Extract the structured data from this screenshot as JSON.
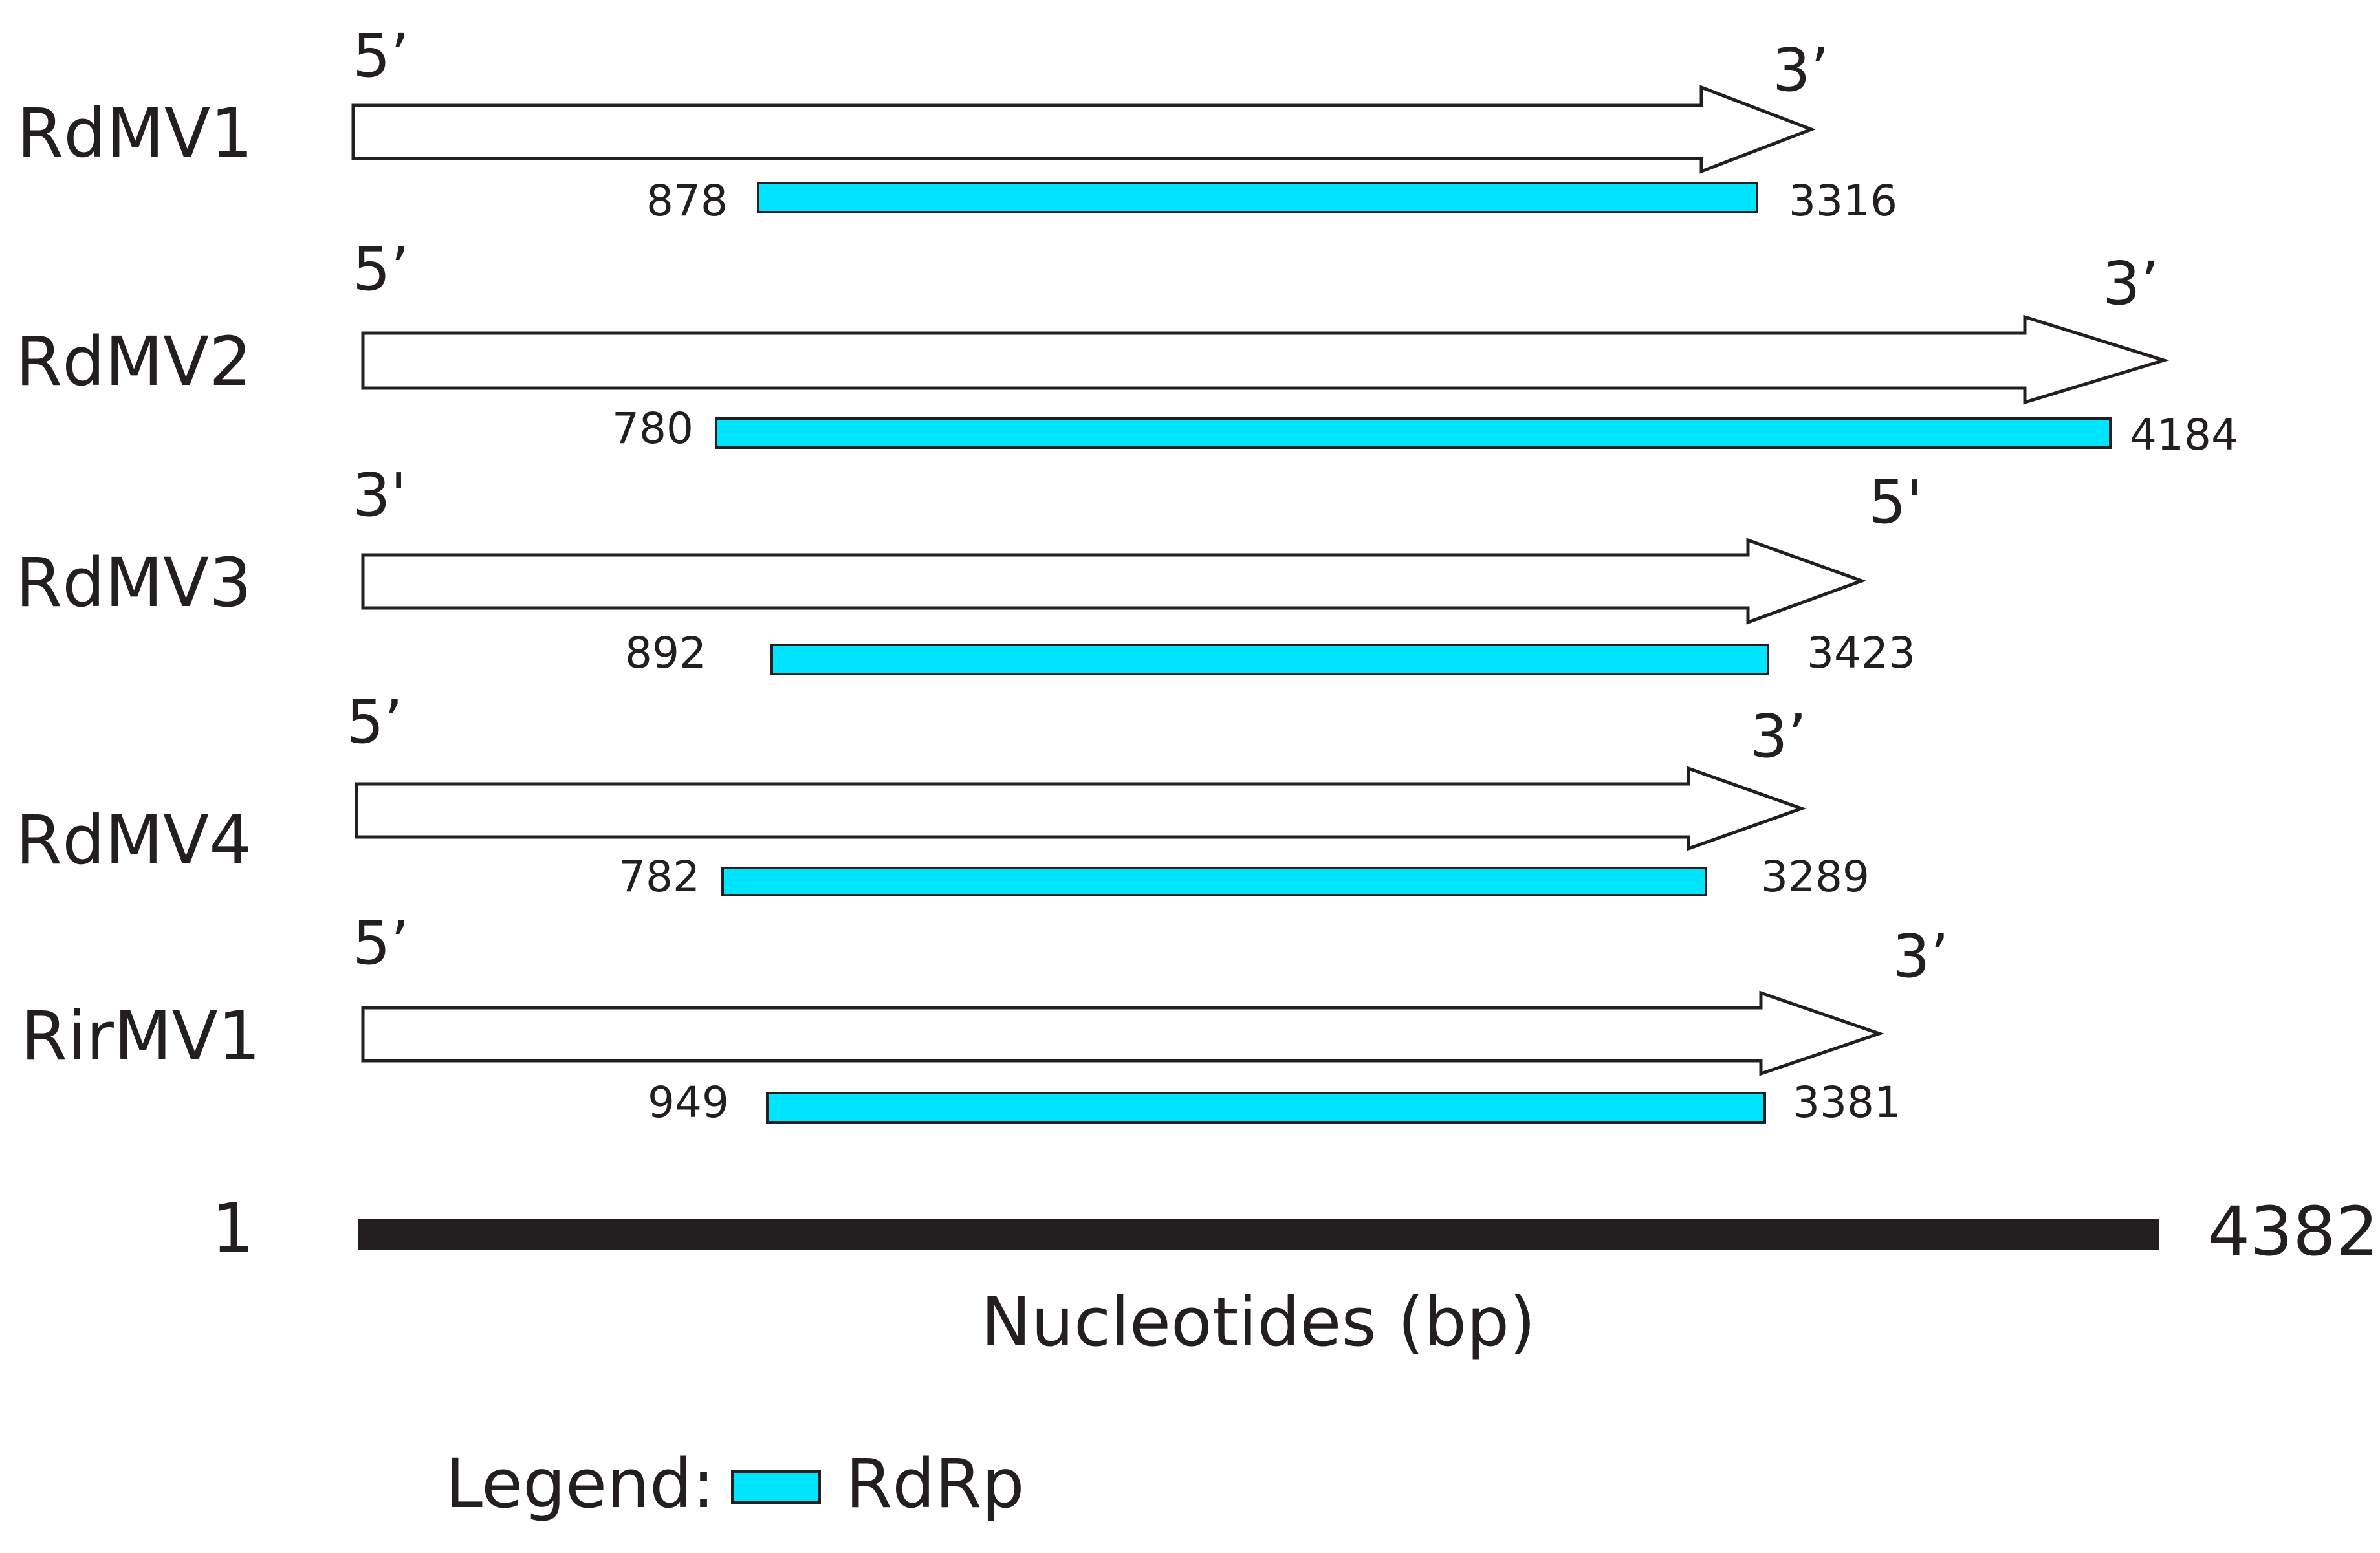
{
  "genomes": [
    {
      "name": "RdMV1",
      "left_end": "5’",
      "right_end": "3’",
      "orf_start": "878",
      "orf_end": "3316"
    },
    {
      "name": "RdMV2",
      "left_end": "5’",
      "right_end": "3’",
      "orf_start": "780",
      "orf_end": "4184"
    },
    {
      "name": "RdMV3",
      "left_end": "3'",
      "right_end": "5'",
      "orf_start": "892",
      "orf_end": "3423"
    },
    {
      "name": "RdMV4",
      "left_end": "5’",
      "right_end": "3’",
      "orf_start": "782",
      "orf_end": "3289"
    },
    {
      "name": "RirMV1",
      "left_end": "5’",
      "right_end": "3’",
      "orf_start": "949",
      "orf_end": "3381"
    }
  ],
  "scale": {
    "start": "1",
    "end": "4382",
    "title": "Nucleotides (bp)"
  },
  "legend": {
    "prefix": "Legend:",
    "item_label": "RdRp"
  },
  "colors": {
    "rdrp_fill": "#00e5ff",
    "outline": "#231f20",
    "arrow_fill": "#ffffff",
    "scale_bar": "#231f20"
  }
}
